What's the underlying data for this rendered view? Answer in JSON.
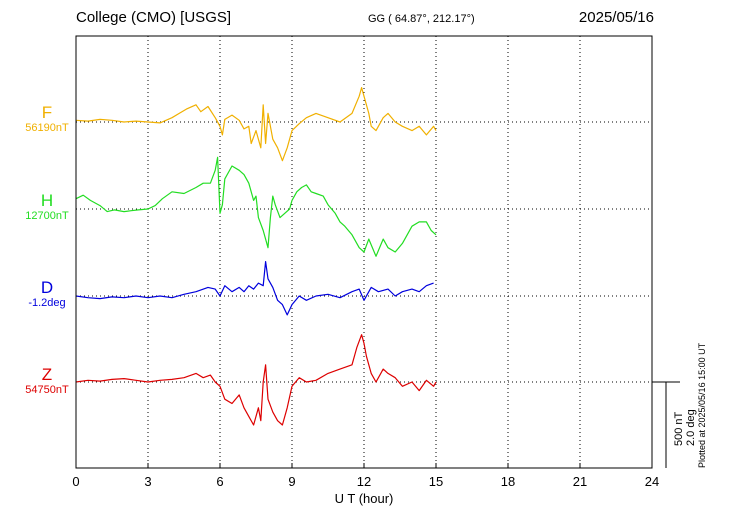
{
  "header": {
    "station": "College (CMO)  [USGS]",
    "coords": "GG ( 64.87°, 212.17°)",
    "date": "2025/05/16"
  },
  "side_note": "Plotted at 2025/05/16 15:00 UT",
  "scale_bar": {
    "label_nt": "500 nT",
    "label_deg": "2.0 deg"
  },
  "colors": {
    "F": "#f0b000",
    "H": "#22dd22",
    "D": "#0000dd",
    "Z": "#dd0000"
  },
  "chart_data": {
    "type": "line",
    "xlabel": "U T (hour)",
    "xlim": [
      0,
      24
    ],
    "xticks": [
      0,
      3,
      6,
      9,
      12,
      15,
      18,
      21,
      24
    ],
    "grid": true,
    "components": [
      {
        "name": "F",
        "baseline_label": "56190nT",
        "points": [
          [
            0,
            0.02
          ],
          [
            0.5,
            0.01
          ],
          [
            1,
            0.03
          ],
          [
            1.5,
            0.02
          ],
          [
            2,
            0.0
          ],
          [
            2.5,
            0.01
          ],
          [
            3,
            0.0
          ],
          [
            3.5,
            -0.01
          ],
          [
            4,
            0.05
          ],
          [
            4.3,
            0.1
          ],
          [
            4.6,
            0.15
          ],
          [
            5,
            0.2
          ],
          [
            5.2,
            0.12
          ],
          [
            5.5,
            0.18
          ],
          [
            5.8,
            0.05
          ],
          [
            6,
            -0.05
          ],
          [
            6.1,
            -0.15
          ],
          [
            6.2,
            0.03
          ],
          [
            6.5,
            0.08
          ],
          [
            6.8,
            0.02
          ],
          [
            7.0,
            -0.08
          ],
          [
            7.2,
            -0.05
          ],
          [
            7.3,
            -0.25
          ],
          [
            7.5,
            -0.1
          ],
          [
            7.7,
            -0.3
          ],
          [
            7.8,
            0.2
          ],
          [
            7.9,
            -0.25
          ],
          [
            8.0,
            0.1
          ],
          [
            8.2,
            -0.2
          ],
          [
            8.4,
            -0.3
          ],
          [
            8.6,
            -0.45
          ],
          [
            8.8,
            -0.3
          ],
          [
            9.0,
            -0.1
          ],
          [
            9.3,
            -0.02
          ],
          [
            9.6,
            0.05
          ],
          [
            10,
            0.1
          ],
          [
            10.5,
            0.05
          ],
          [
            11,
            0.0
          ],
          [
            11.5,
            0.1
          ],
          [
            11.8,
            0.3
          ],
          [
            11.9,
            0.4
          ],
          [
            12.0,
            0.3
          ],
          [
            12.2,
            0.1
          ],
          [
            12.3,
            -0.05
          ],
          [
            12.5,
            -0.1
          ],
          [
            12.8,
            0.05
          ],
          [
            13,
            0.1
          ],
          [
            13.3,
            0.0
          ],
          [
            13.6,
            -0.05
          ],
          [
            14,
            -0.1
          ],
          [
            14.3,
            -0.05
          ],
          [
            14.6,
            -0.15
          ],
          [
            14.9,
            -0.05
          ],
          [
            15.0,
            -0.1
          ]
        ]
      },
      {
        "name": "H",
        "baseline_label": "12700nT",
        "points": [
          [
            0,
            0.12
          ],
          [
            0.3,
            0.16
          ],
          [
            0.6,
            0.1
          ],
          [
            1,
            0.04
          ],
          [
            1.3,
            -0.03
          ],
          [
            1.6,
            -0.01
          ],
          [
            2,
            -0.03
          ],
          [
            2.3,
            -0.02
          ],
          [
            2.6,
            -0.01
          ],
          [
            3,
            0.0
          ],
          [
            3.3,
            0.04
          ],
          [
            3.6,
            0.12
          ],
          [
            4,
            0.2
          ],
          [
            4.5,
            0.18
          ],
          [
            5,
            0.25
          ],
          [
            5.3,
            0.3
          ],
          [
            5.6,
            0.3
          ],
          [
            5.8,
            0.45
          ],
          [
            5.9,
            0.6
          ],
          [
            6.0,
            -0.05
          ],
          [
            6.1,
            0.05
          ],
          [
            6.2,
            0.35
          ],
          [
            6.5,
            0.5
          ],
          [
            6.8,
            0.45
          ],
          [
            7.0,
            0.4
          ],
          [
            7.2,
            0.3
          ],
          [
            7.4,
            0.1
          ],
          [
            7.5,
            0.15
          ],
          [
            7.6,
            -0.1
          ],
          [
            7.8,
            -0.25
          ],
          [
            8.0,
            -0.45
          ],
          [
            8.1,
            -0.1
          ],
          [
            8.2,
            0.15
          ],
          [
            8.3,
            0.05
          ],
          [
            8.5,
            -0.1
          ],
          [
            8.7,
            -0.05
          ],
          [
            8.9,
            0.0
          ],
          [
            9.0,
            0.1
          ],
          [
            9.2,
            0.2
          ],
          [
            9.4,
            0.25
          ],
          [
            9.6,
            0.28
          ],
          [
            9.8,
            0.2
          ],
          [
            10,
            0.18
          ],
          [
            10.3,
            0.15
          ],
          [
            10.5,
            0.05
          ],
          [
            10.8,
            -0.05
          ],
          [
            11.0,
            -0.15
          ],
          [
            11.2,
            -0.2
          ],
          [
            11.5,
            -0.3
          ],
          [
            11.8,
            -0.45
          ],
          [
            12.0,
            -0.5
          ],
          [
            12.2,
            -0.35
          ],
          [
            12.5,
            -0.55
          ],
          [
            12.8,
            -0.35
          ],
          [
            13.0,
            -0.45
          ],
          [
            13.3,
            -0.5
          ],
          [
            13.6,
            -0.4
          ],
          [
            14.0,
            -0.2
          ],
          [
            14.3,
            -0.15
          ],
          [
            14.6,
            -0.15
          ],
          [
            14.8,
            -0.25
          ],
          [
            15.0,
            -0.3
          ]
        ]
      },
      {
        "name": "D",
        "baseline_label": "-1.2deg",
        "points": [
          [
            0,
            0.0
          ],
          [
            0.5,
            -0.02
          ],
          [
            1,
            -0.03
          ],
          [
            1.5,
            -0.01
          ],
          [
            2,
            -0.02
          ],
          [
            2.5,
            0.0
          ],
          [
            3,
            -0.02
          ],
          [
            3.5,
            0.0
          ],
          [
            4,
            -0.02
          ],
          [
            4.5,
            0.02
          ],
          [
            5,
            0.05
          ],
          [
            5.5,
            0.1
          ],
          [
            5.8,
            0.08
          ],
          [
            6,
            0.0
          ],
          [
            6.2,
            0.12
          ],
          [
            6.5,
            0.05
          ],
          [
            6.8,
            0.1
          ],
          [
            7,
            0.05
          ],
          [
            7.2,
            0.12
          ],
          [
            7.4,
            0.08
          ],
          [
            7.6,
            0.15
          ],
          [
            7.8,
            0.12
          ],
          [
            7.9,
            0.4
          ],
          [
            8.0,
            0.2
          ],
          [
            8.2,
            0.1
          ],
          [
            8.4,
            -0.05
          ],
          [
            8.6,
            -0.1
          ],
          [
            8.8,
            -0.22
          ],
          [
            9.0,
            -0.1
          ],
          [
            9.3,
            0.0
          ],
          [
            9.6,
            -0.05
          ],
          [
            10,
            0.0
          ],
          [
            10.5,
            0.02
          ],
          [
            11,
            -0.02
          ],
          [
            11.5,
            0.05
          ],
          [
            11.8,
            0.08
          ],
          [
            12.0,
            -0.05
          ],
          [
            12.3,
            0.1
          ],
          [
            12.6,
            0.05
          ],
          [
            13,
            0.08
          ],
          [
            13.3,
            0.0
          ],
          [
            13.6,
            0.05
          ],
          [
            14,
            0.08
          ],
          [
            14.3,
            0.05
          ],
          [
            14.6,
            0.12
          ],
          [
            14.9,
            0.15
          ]
        ]
      },
      {
        "name": "Z",
        "baseline_label": "54750nT",
        "points": [
          [
            0,
            0.0
          ],
          [
            0.5,
            0.02
          ],
          [
            1,
            0.01
          ],
          [
            1.5,
            0.03
          ],
          [
            2,
            0.04
          ],
          [
            2.5,
            0.02
          ],
          [
            3,
            0.0
          ],
          [
            3.5,
            0.02
          ],
          [
            4,
            0.03
          ],
          [
            4.5,
            0.05
          ],
          [
            5,
            0.1
          ],
          [
            5.3,
            0.05
          ],
          [
            5.6,
            0.08
          ],
          [
            5.8,
            0.0
          ],
          [
            6,
            -0.05
          ],
          [
            6.2,
            -0.2
          ],
          [
            6.5,
            -0.25
          ],
          [
            6.8,
            -0.15
          ],
          [
            7.0,
            -0.3
          ],
          [
            7.2,
            -0.4
          ],
          [
            7.4,
            -0.5
          ],
          [
            7.6,
            -0.3
          ],
          [
            7.7,
            -0.45
          ],
          [
            7.8,
            0.0
          ],
          [
            7.9,
            0.2
          ],
          [
            8.0,
            -0.2
          ],
          [
            8.2,
            -0.35
          ],
          [
            8.4,
            -0.45
          ],
          [
            8.6,
            -0.5
          ],
          [
            8.8,
            -0.3
          ],
          [
            9.0,
            -0.05
          ],
          [
            9.3,
            0.05
          ],
          [
            9.6,
            0.0
          ],
          [
            10,
            0.02
          ],
          [
            10.5,
            0.1
          ],
          [
            11,
            0.15
          ],
          [
            11.5,
            0.2
          ],
          [
            11.7,
            0.4
          ],
          [
            11.9,
            0.55
          ],
          [
            12.0,
            0.45
          ],
          [
            12.1,
            0.3
          ],
          [
            12.3,
            0.1
          ],
          [
            12.5,
            0.0
          ],
          [
            12.8,
            0.15
          ],
          [
            13,
            0.1
          ],
          [
            13.3,
            0.05
          ],
          [
            13.6,
            -0.05
          ],
          [
            14,
            0.0
          ],
          [
            14.3,
            -0.1
          ],
          [
            14.6,
            0.02
          ],
          [
            14.9,
            -0.05
          ],
          [
            15.0,
            0.0
          ]
        ]
      }
    ]
  }
}
